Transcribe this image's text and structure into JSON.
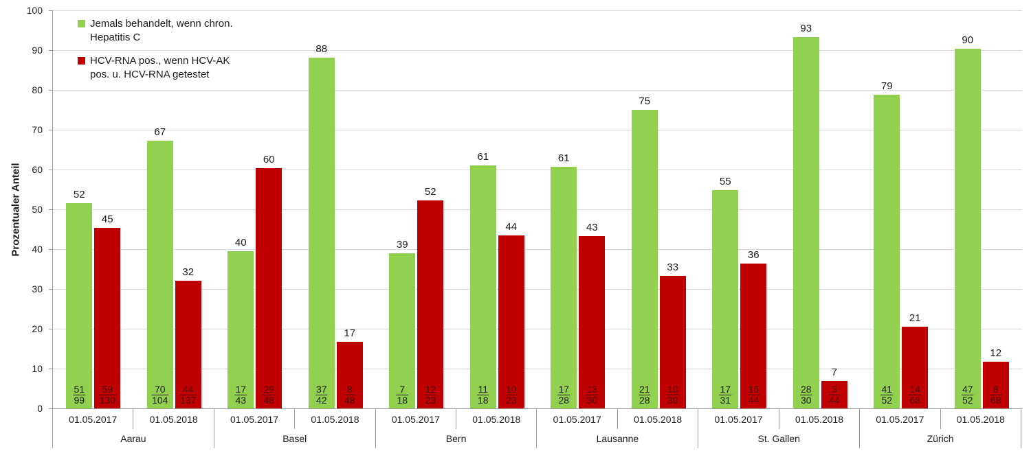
{
  "chart_data": {
    "type": "bar",
    "title": "",
    "ylabel": "Prozentualer Anteil",
    "xlabel": "",
    "ylim": [
      0,
      100
    ],
    "ytick_step": 10,
    "grid": true,
    "legend_position": "upper-left-inside",
    "colors": {
      "grid": "#d9d9d9",
      "axis": "#9b9b9b",
      "text": "#1a1a1a"
    },
    "series": [
      {
        "name": "Jemals behandelt, wenn chron.\nHepatitis C",
        "color": "#92D050",
        "fraction_color": "#1a1a1a"
      },
      {
        "name": "HCV-RNA pos., wenn HCV-AK\npos. u. HCV-RNA getestet",
        "color": "#C00000",
        "fraction_color": "#4d0a0a"
      }
    ],
    "cities": [
      {
        "name": "Aarau",
        "periods": [
          {
            "date": "01.05.2017",
            "bars": [
              {
                "value": 52,
                "num": 51,
                "den": 99
              },
              {
                "value": 45,
                "num": 59,
                "den": 130
              }
            ]
          },
          {
            "date": "01.05.2018",
            "bars": [
              {
                "value": 67,
                "num": 70,
                "den": 104
              },
              {
                "value": 32,
                "num": 44,
                "den": 137
              }
            ]
          }
        ]
      },
      {
        "name": "Basel",
        "periods": [
          {
            "date": "01.05.2017",
            "bars": [
              {
                "value": 40,
                "num": 17,
                "den": 43
              },
              {
                "value": 60,
                "num": 29,
                "den": 48
              }
            ]
          },
          {
            "date": "01.05.2018",
            "bars": [
              {
                "value": 88,
                "num": 37,
                "den": 42
              },
              {
                "value": 17,
                "num": 8,
                "den": 48
              }
            ]
          }
        ]
      },
      {
        "name": "Bern",
        "periods": [
          {
            "date": "01.05.2017",
            "bars": [
              {
                "value": 39,
                "num": 7,
                "den": 18
              },
              {
                "value": 52,
                "num": 12,
                "den": 23
              }
            ]
          },
          {
            "date": "01.05.2018",
            "bars": [
              {
                "value": 61,
                "num": 11,
                "den": 18
              },
              {
                "value": 44,
                "num": 10,
                "den": 23
              }
            ]
          }
        ]
      },
      {
        "name": "Lausanne",
        "periods": [
          {
            "date": "01.05.2017",
            "bars": [
              {
                "value": 61,
                "num": 17,
                "den": 28
              },
              {
                "value": 43,
                "num": 13,
                "den": 30
              }
            ]
          },
          {
            "date": "01.05.2018",
            "bars": [
              {
                "value": 75,
                "num": 21,
                "den": 28
              },
              {
                "value": 33,
                "num": 10,
                "den": 30
              }
            ]
          }
        ]
      },
      {
        "name": "St. Gallen",
        "periods": [
          {
            "date": "01.05.2017",
            "bars": [
              {
                "value": 55,
                "num": 17,
                "den": 31
              },
              {
                "value": 36,
                "num": 16,
                "den": 44
              }
            ]
          },
          {
            "date": "01.05.2018",
            "bars": [
              {
                "value": 93,
                "num": 28,
                "den": 30
              },
              {
                "value": 7,
                "num": 3,
                "den": 44
              }
            ]
          }
        ]
      },
      {
        "name": "Zürich",
        "periods": [
          {
            "date": "01.05.2017",
            "bars": [
              {
                "value": 79,
                "num": 41,
                "den": 52
              },
              {
                "value": 21,
                "num": 14,
                "den": 68
              }
            ]
          },
          {
            "date": "01.05.2018",
            "bars": [
              {
                "value": 90,
                "num": 47,
                "den": 52
              },
              {
                "value": 12,
                "num": 8,
                "den": 68
              }
            ]
          }
        ]
      }
    ]
  }
}
